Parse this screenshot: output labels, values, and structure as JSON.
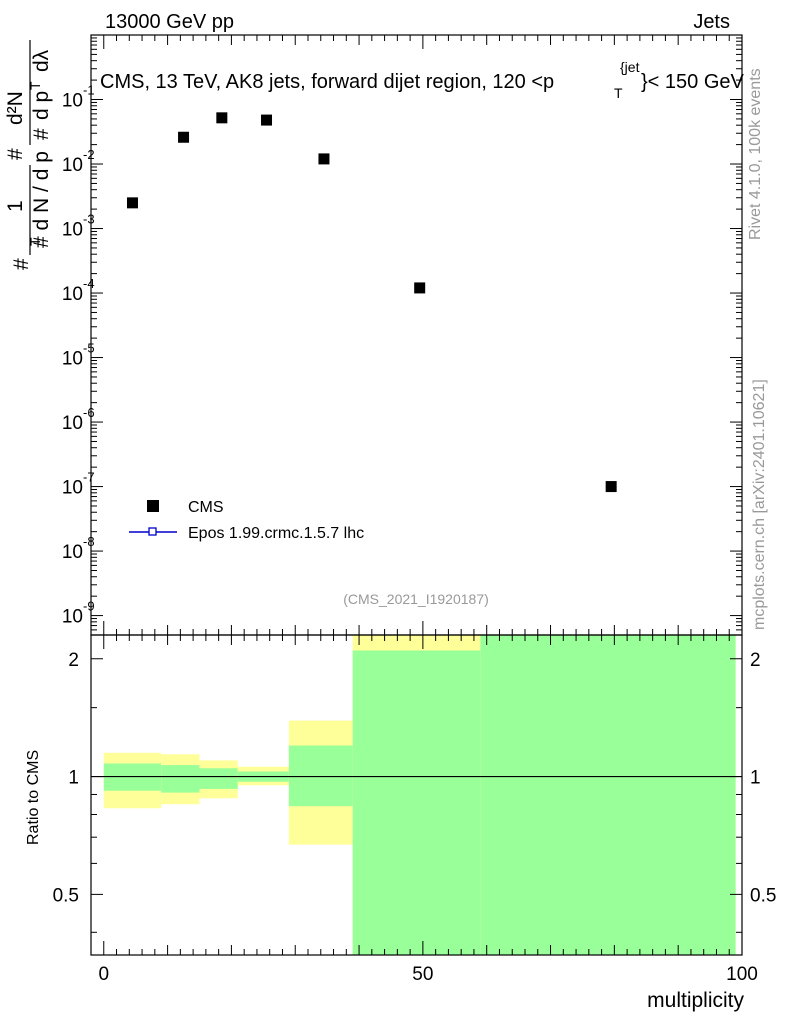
{
  "header": {
    "left": "13000 GeV pp",
    "right": "Jets",
    "title_main": "CMS, 13 TeV, AK8 jets, forward dijet region, 120 <p",
    "title_sub": "T",
    "title_sup": "{jet",
    "title_end": "}< 150 GeV"
  },
  "side": {
    "rivet": "Rivet 4.1.0,  100k events",
    "mcplots": "mcplots.cern.ch [arXiv:2401.10621]"
  },
  "main_ylabel": {
    "frac_num": "1",
    "frac_den": "# d N / d p",
    "frac_den_sub": "T",
    "d2N": "d²N",
    "d2N_den": "d p",
    "d2N_den_sub": "T",
    "d2N_den_end": "dλ",
    "hash": "#"
  },
  "watermark": "(CMS_2021_I1920187)",
  "legend": {
    "data_label": "CMS",
    "mc_label": "Epos 1.99.crmc.1.5.7 lhc"
  },
  "colors": {
    "mc_line": "#0000cc",
    "band_inner": "#99ff99",
    "band_outer": "#ffff99"
  },
  "chart_data": [
    {
      "type": "scatter",
      "title": "CMS, 13 TeV, AK8 jets, forward dijet region, 120 <p_T^{jet}< 150 GeV",
      "ylabel": "1/(d N / d p_T) d²N/(d p_T dλ)",
      "yscale": "log",
      "ylim": [
        5e-10,
        1
      ],
      "xlim": [
        -2,
        100
      ],
      "y_ticks": [
        "10^-9",
        "10^-8",
        "10^-7",
        "10^-6",
        "10^-5",
        "10^-4",
        "10^-3",
        "10^-2",
        "10^-1"
      ],
      "series": [
        {
          "name": "CMS",
          "x": [
            4.5,
            12.5,
            18.5,
            25.5,
            34.5,
            49.5,
            79.5
          ],
          "y": [
            0.0025,
            0.026,
            0.052,
            0.048,
            0.012,
            0.00012,
            1e-07
          ]
        }
      ],
      "legend_position": "bottom-left"
    },
    {
      "type": "area",
      "ylabel": "Ratio to CMS",
      "xlabel": "multiplicity",
      "ylim": [
        0.35,
        2.3
      ],
      "xlim": [
        -2,
        100
      ],
      "x_ticks": [
        "0",
        "50",
        "100"
      ],
      "y_ticks": [
        "0.5",
        "1",
        "2"
      ],
      "reference_line": 1,
      "bins": [
        {
          "x0": 0,
          "x1": 9,
          "inner": [
            0.92,
            1.08
          ],
          "outer": [
            0.83,
            1.15
          ]
        },
        {
          "x0": 9,
          "x1": 15,
          "inner": [
            0.91,
            1.07
          ],
          "outer": [
            0.85,
            1.14
          ]
        },
        {
          "x0": 15,
          "x1": 21,
          "inner": [
            0.93,
            1.05
          ],
          "outer": [
            0.88,
            1.1
          ]
        },
        {
          "x0": 21,
          "x1": 29,
          "inner": [
            0.97,
            1.03
          ],
          "outer": [
            0.95,
            1.06
          ]
        },
        {
          "x0": 29,
          "x1": 39,
          "inner": [
            0.84,
            1.2
          ],
          "outer": [
            0.67,
            1.39
          ]
        },
        {
          "x0": 39,
          "x1": 59,
          "inner": [
            0.35,
            2.1
          ],
          "outer": [
            0.35,
            2.3
          ]
        },
        {
          "x0": 59,
          "x1": 99,
          "inner": [
            0.35,
            2.3
          ],
          "outer": [
            0.35,
            2.3
          ]
        }
      ]
    }
  ]
}
